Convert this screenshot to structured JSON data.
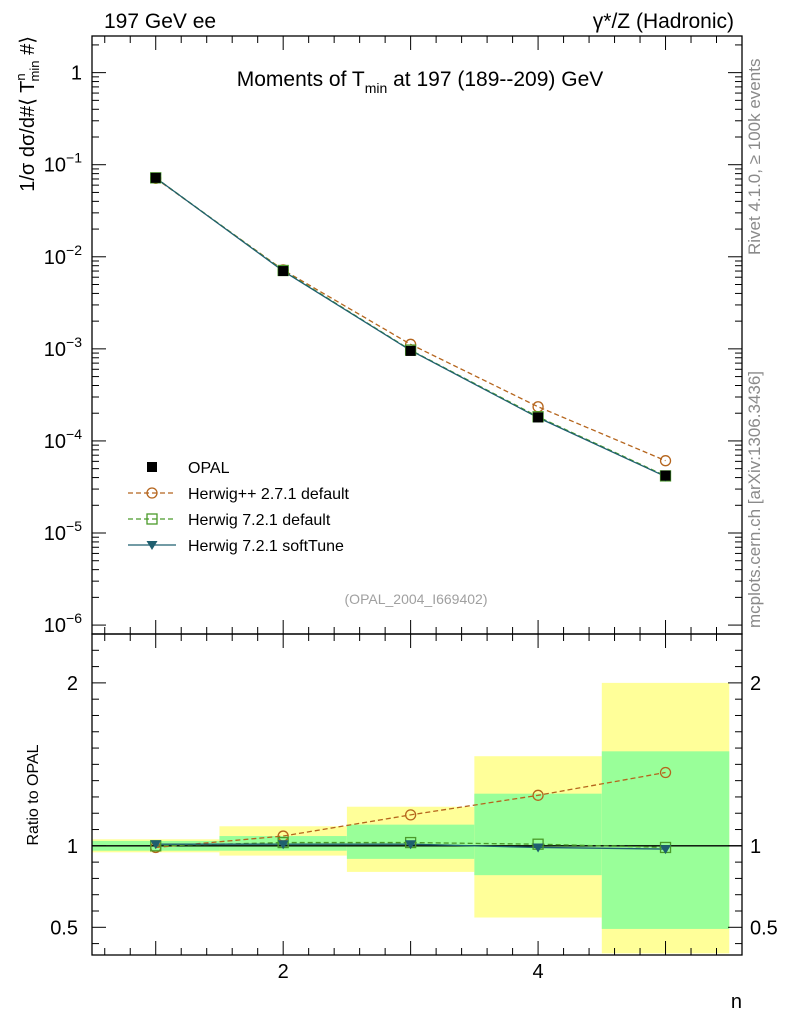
{
  "header": {
    "left": "197 GeV ee",
    "right": "γ*/Z (Hadronic)",
    "side_top": "Rivet 4.1.0, ≥ 100k events",
    "side_bottom": "mcplots.cern.ch [arXiv:1306.3436]"
  },
  "chart_data": [
    {
      "type": "line",
      "yscale": "log",
      "title": "Moments of T_min at 197 (189--209) GeV",
      "title_parts": {
        "a": "Moments of T",
        "sub": "min",
        "b": " at 197 (189--209) GeV"
      },
      "ylabel": "1/σ  dσ/d#⟨ T^n_min #⟩",
      "ylabel_parts": {
        "a": "1/σ   dσ/d#⟨ T",
        "sup": "n",
        "sub": "min",
        "b": " #⟩"
      },
      "xlim": [
        0.5,
        5.6
      ],
      "ylim": [
        8e-07,
        2.5
      ],
      "yticks": [
        {
          "value": 1,
          "base": "1",
          "exp": ""
        },
        {
          "value": 0.1,
          "base": "10",
          "exp": "−1"
        },
        {
          "value": 0.01,
          "base": "10",
          "exp": "−2"
        },
        {
          "value": 0.001,
          "base": "10",
          "exp": "−3"
        },
        {
          "value": 0.0001,
          "base": "10",
          "exp": "−4"
        },
        {
          "value": 1e-05,
          "base": "10",
          "exp": "−5"
        },
        {
          "value": 1e-06,
          "base": "10",
          "exp": "−6"
        }
      ],
      "x": [
        1,
        2,
        3,
        4,
        5
      ],
      "series": [
        {
          "name": "OPAL",
          "values": [
            0.072,
            0.007,
            0.00095,
            0.00018,
            4.2e-05
          ],
          "color": "#000000",
          "marker": "square-filled",
          "line": "none"
        },
        {
          "name": "Herwig++ 2.7.1 default",
          "values": [
            0.071,
            0.0072,
            0.00112,
            0.000235,
            6.1e-05
          ],
          "color": "#b5651d",
          "marker": "circle-open",
          "line": "dashed"
        },
        {
          "name": "Herwig 7.2.1 default",
          "values": [
            0.072,
            0.0071,
            0.00097,
            0.000183,
            4.17e-05
          ],
          "color": "#4a9a2a",
          "marker": "square-open",
          "line": "dashed"
        },
        {
          "name": "Herwig 7.2.1 softTune",
          "values": [
            0.072,
            0.007,
            0.00096,
            0.000179,
            4.1e-05
          ],
          "color": "#1f5f6f",
          "marker": "triangle-down-filled",
          "line": "solid"
        }
      ],
      "annotation": "(OPAL_2004_I669402)",
      "legend": "lower-left"
    },
    {
      "type": "line",
      "title": "",
      "ylabel": "Ratio to OPAL",
      "xlabel": "n",
      "xlim": [
        0.5,
        5.6
      ],
      "ylim": [
        0.33,
        2.3
      ],
      "xticks": [
        2,
        4
      ],
      "yticks": [
        0.5,
        1,
        2
      ],
      "yticklabels": [
        "0.5",
        "1",
        "2"
      ],
      "bands": {
        "bins": [
          [
            0.5,
            1.5
          ],
          [
            1.5,
            2.5
          ],
          [
            2.5,
            3.5
          ],
          [
            3.5,
            4.5
          ],
          [
            4.5,
            5.5
          ]
        ],
        "stat": [
          [
            0.97,
            1.03
          ],
          [
            0.97,
            1.06
          ],
          [
            0.92,
            1.13
          ],
          [
            0.82,
            1.32
          ],
          [
            0.49,
            1.58
          ]
        ],
        "total": [
          [
            0.96,
            1.04
          ],
          [
            0.94,
            1.12
          ],
          [
            0.84,
            1.24
          ],
          [
            0.56,
            1.55
          ],
          [
            0.34,
            2.0
          ]
        ],
        "stat_color": "#99ff99",
        "total_color": "#ffff99"
      },
      "reference": 1,
      "series": [
        {
          "name": "Herwig++ 2.7.1 default",
          "values": [
            0.99,
            1.06,
            1.19,
            1.31,
            1.45
          ],
          "color": "#b5651d",
          "marker": "circle-open",
          "line": "dashed"
        },
        {
          "name": "Herwig 7.2.1 default",
          "values": [
            1.0,
            1.02,
            1.02,
            1.01,
            0.99
          ],
          "color": "#4a9a2a",
          "marker": "square-open",
          "line": "dashed"
        },
        {
          "name": "Herwig 7.2.1 softTune",
          "values": [
            1.01,
            1.01,
            1.01,
            0.99,
            0.98
          ],
          "color": "#1f5f6f",
          "marker": "triangle-down-filled",
          "line": "solid"
        }
      ]
    }
  ]
}
